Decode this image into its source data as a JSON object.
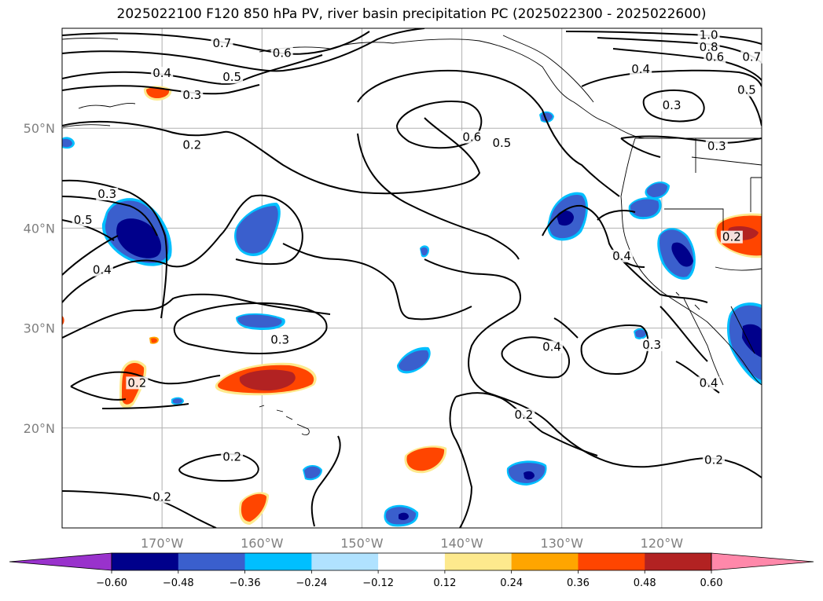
{
  "title": "2025022100 F120 850 hPa PV, river basin precipitation PC (2025022300 - 2025022600)",
  "map": {
    "lon_range": [
      -180,
      -110
    ],
    "lat_range": [
      10,
      60
    ],
    "grid": true,
    "lon_ticks": [
      {
        "lon": -170,
        "label": "170°W"
      },
      {
        "lon": -160,
        "label": "160°W"
      },
      {
        "lon": -150,
        "label": "150°W"
      },
      {
        "lon": -140,
        "label": "140°W"
      },
      {
        "lon": -130,
        "label": "130°W"
      },
      {
        "lon": -120,
        "label": "120°W"
      }
    ],
    "lat_ticks": [
      {
        "lat": 20,
        "label": "20°N"
      },
      {
        "lat": 30,
        "label": "30°N"
      },
      {
        "lat": 40,
        "label": "40°N"
      },
      {
        "lat": 50,
        "label": "50°N"
      }
    ]
  },
  "pv_contour_labels": [
    {
      "text": "0.7",
      "lon": -164.0,
      "lat": 58.2
    },
    {
      "text": "0.6",
      "lon": -158.0,
      "lat": 57.2
    },
    {
      "text": "0.4",
      "lon": -170.0,
      "lat": 55.2
    },
    {
      "text": "0.5",
      "lon": -163.0,
      "lat": 54.8
    },
    {
      "text": "0.3",
      "lon": -167.0,
      "lat": 53.0
    },
    {
      "text": "0.2",
      "lon": -167.0,
      "lat": 48.0
    },
    {
      "text": "0.6",
      "lon": -139.0,
      "lat": 48.8
    },
    {
      "text": "0.5",
      "lon": -136.0,
      "lat": 48.2
    },
    {
      "text": "1.0",
      "lon": -115.3,
      "lat": 59.0
    },
    {
      "text": "0.8",
      "lon": -115.3,
      "lat": 57.8
    },
    {
      "text": "0.6",
      "lon": -114.7,
      "lat": 56.8
    },
    {
      "text": "0.7",
      "lon": -111.0,
      "lat": 56.8
    },
    {
      "text": "0.4",
      "lon": -122.1,
      "lat": 55.6
    },
    {
      "text": "0.5",
      "lon": -111.5,
      "lat": 53.5
    },
    {
      "text": "0.3",
      "lon": -119.0,
      "lat": 52.0
    },
    {
      "text": "0.3",
      "lon": -114.5,
      "lat": 47.9
    },
    {
      "text": "0.3",
      "lon": -175.5,
      "lat": 43.1
    },
    {
      "text": "0.5",
      "lon": -177.9,
      "lat": 40.5
    },
    {
      "text": "0.4",
      "lon": -176.0,
      "lat": 35.5
    },
    {
      "text": "0.3",
      "lon": -158.2,
      "lat": 28.5
    },
    {
      "text": "0.2",
      "lon": -172.5,
      "lat": 24.2
    },
    {
      "text": "0.4",
      "lon": -124.0,
      "lat": 36.9
    },
    {
      "text": "0.4",
      "lon": -131.0,
      "lat": 27.8
    },
    {
      "text": "0.3",
      "lon": -121.0,
      "lat": 28.0
    },
    {
      "text": "0.4",
      "lon": -115.3,
      "lat": 24.2
    },
    {
      "text": "0.2",
      "lon": -133.8,
      "lat": 21.0
    },
    {
      "text": "0.2",
      "lon": -163.0,
      "lat": 16.8
    },
    {
      "text": "0.2",
      "lon": -170.0,
      "lat": 12.8
    },
    {
      "text": "0.2",
      "lon": -114.8,
      "lat": 16.5
    },
    {
      "text": "0.2",
      "lon": -113.0,
      "lat": 38.8
    }
  ],
  "colorbar": {
    "extend": "both",
    "tick_labels": [
      "−0.60",
      "−0.48",
      "−0.36",
      "−0.24",
      "−0.12",
      "0.12",
      "0.24",
      "0.36",
      "0.48",
      "0.60"
    ],
    "colors": [
      "#9932cc",
      "#00008b",
      "#3a5fcd",
      "#00bfff",
      "#b0e2ff",
      "#ffffff",
      "#fde98d",
      "#ffa500",
      "#ff4500",
      "#b22222",
      "#ff88aa"
    ]
  }
}
